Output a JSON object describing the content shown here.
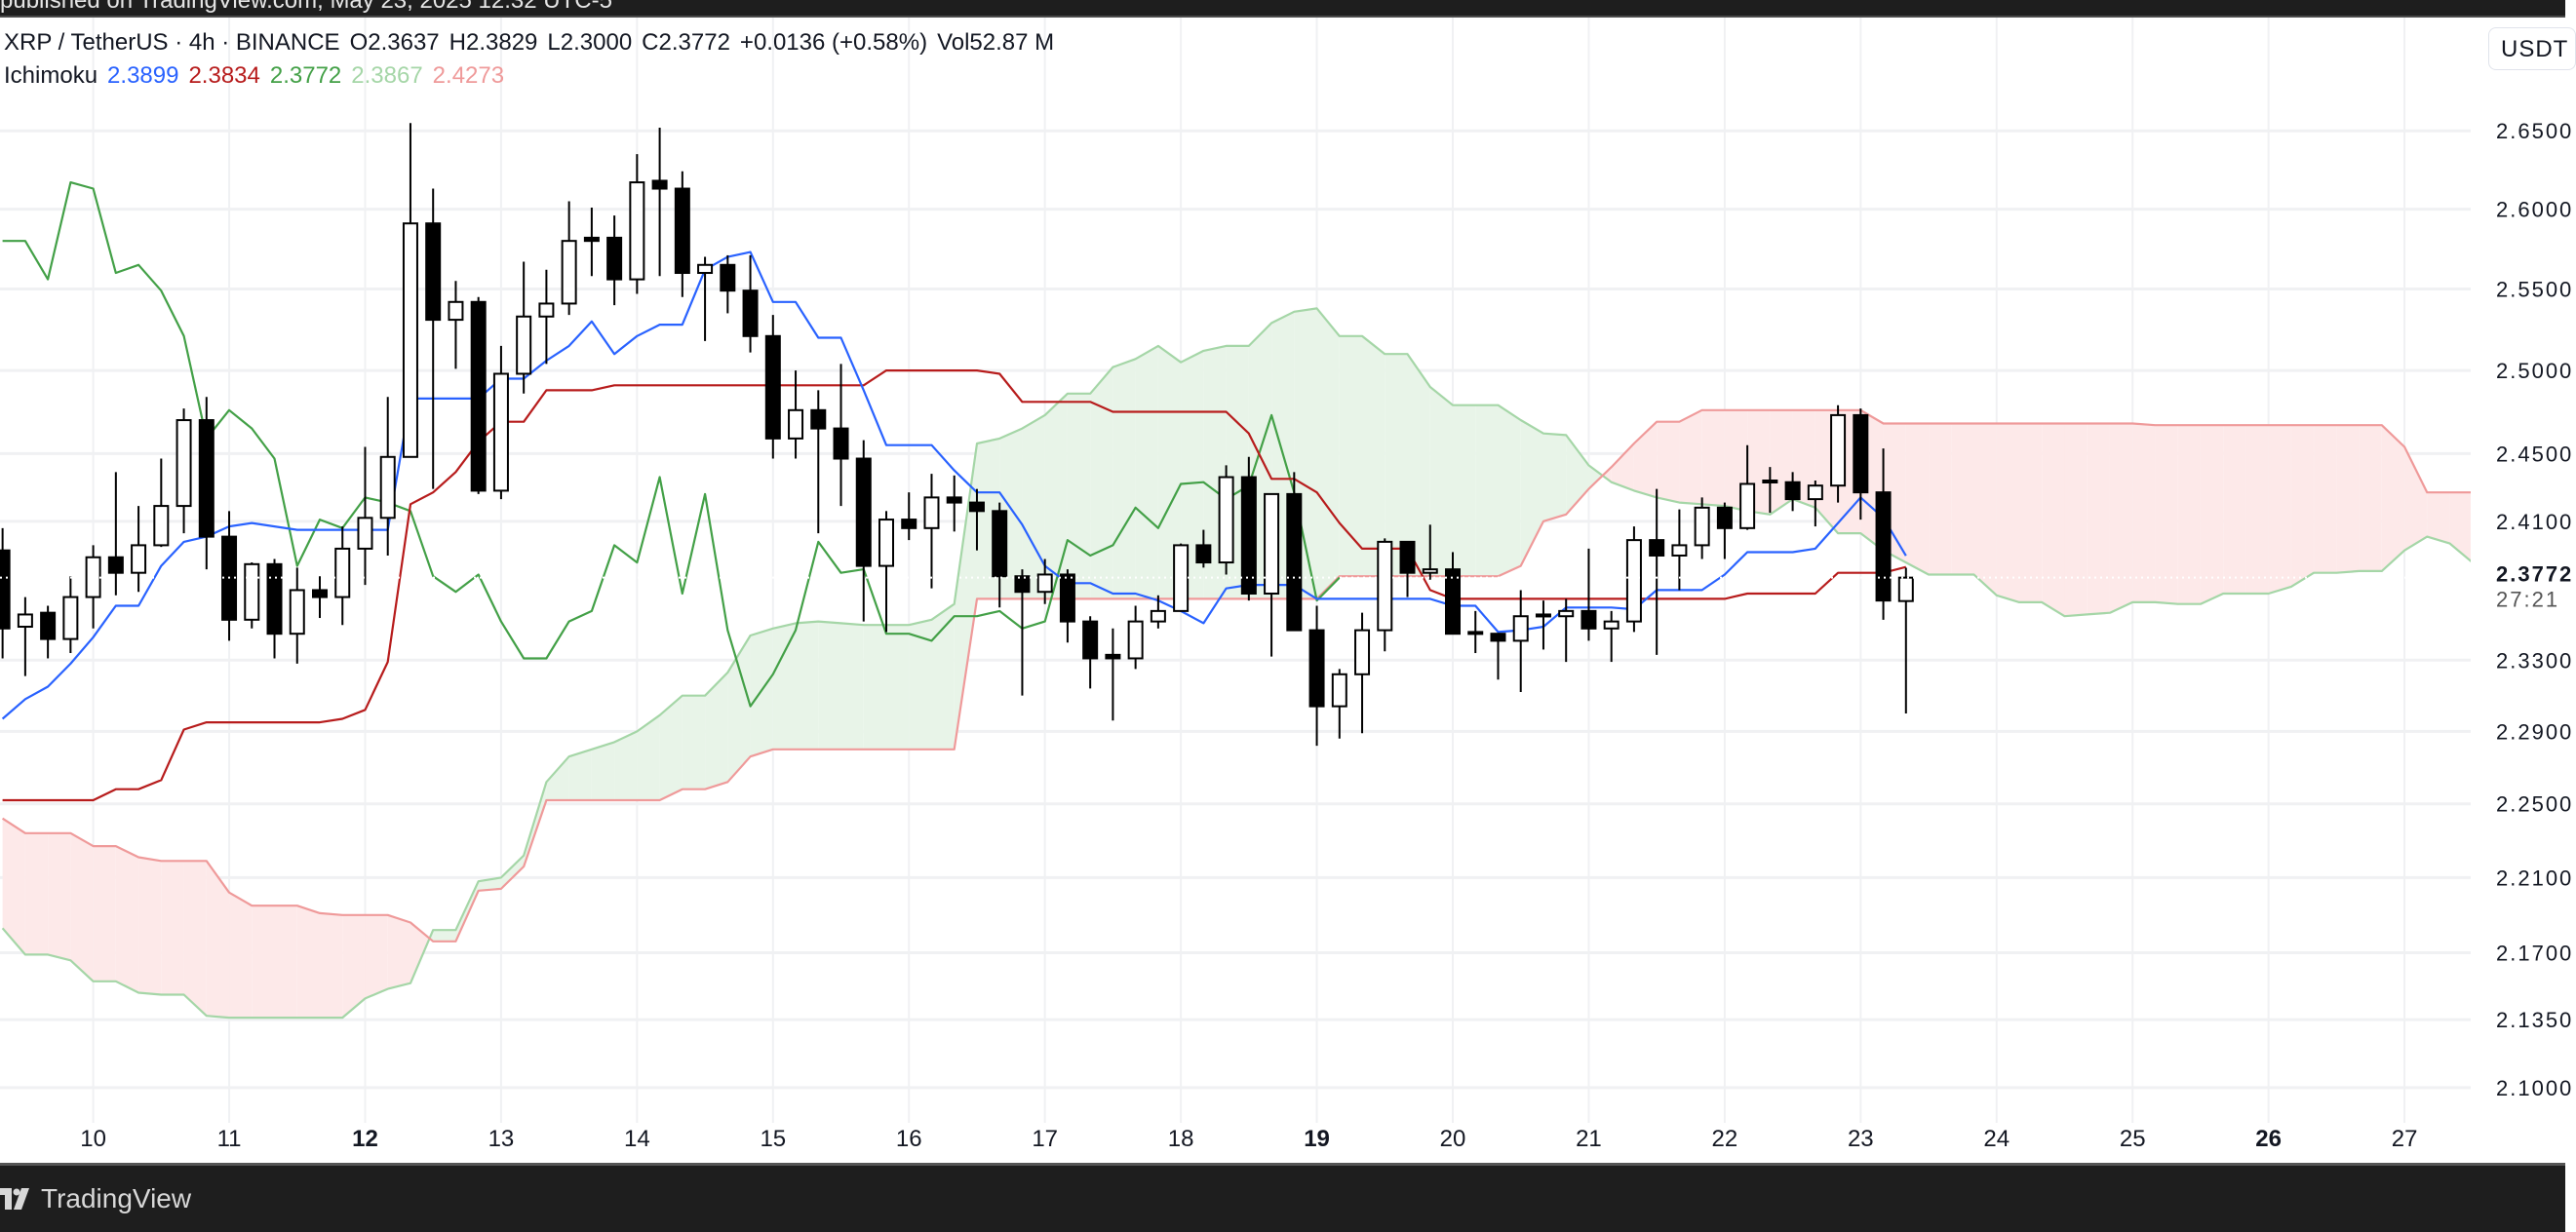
{
  "banner": {
    "text": "published on TradingView.com, May 23, 2025 12:32 UTC-5"
  },
  "legend": {
    "symbol": "XRP / TetherUS · 4h · BINANCE",
    "open": "O2.3637",
    "high": "H2.3829",
    "low": "L2.3000",
    "close": "C2.3772",
    "change": "+0.0136 (+0.58%)",
    "volume": "Vol52.87 M",
    "indicator": "Ichimoku",
    "values": [
      "2.3899",
      "2.3834",
      "2.3772",
      "2.3867",
      "2.4273"
    ]
  },
  "currency_button": "USDT",
  "footer": {
    "brand": "TradingView"
  },
  "colors": {
    "conversion": "#2962ff",
    "base": "#b71c1c",
    "lagging": "#43a047",
    "span_a": "#a5d6a7",
    "span_b": "#ef9a9a",
    "cloud_bull": "#e8f4e8",
    "cloud_bear": "#fde9e9",
    "candle_bear": "#000000",
    "candle_bull": "#ffffff"
  },
  "chart_data": {
    "type": "candlestick",
    "symbol": "XRP / TetherUS",
    "exchange": "BINANCE",
    "interval": "4h",
    "first_candle": "05-09 08:00",
    "y_scale": "log",
    "y_unit": "USDT",
    "grid": true,
    "current_price": {
      "label": "2.3772",
      "countdown": "27:21",
      "value": 2.3772
    },
    "y_ticks": [
      {
        "value": 2.65,
        "label": "2.6500"
      },
      {
        "value": 2.6,
        "label": "2.6000"
      },
      {
        "value": 2.55,
        "label": "2.5500"
      },
      {
        "value": 2.5,
        "label": "2.5000"
      },
      {
        "value": 2.45,
        "label": "2.4500"
      },
      {
        "value": 2.41,
        "label": "2.4100"
      },
      {
        "value": 2.33,
        "label": "2.3300"
      },
      {
        "value": 2.29,
        "label": "2.2900"
      },
      {
        "value": 2.25,
        "label": "2.2500"
      },
      {
        "value": 2.21,
        "label": "2.2100"
      },
      {
        "value": 2.17,
        "label": "2.1700"
      },
      {
        "value": 2.135,
        "label": "2.1350"
      },
      {
        "value": 2.1,
        "label": "2.1000"
      }
    ],
    "x_ticks": [
      {
        "day": 10,
        "label": "10",
        "bold": false
      },
      {
        "day": 11,
        "label": "11",
        "bold": false
      },
      {
        "day": 12,
        "label": "12",
        "bold": true
      },
      {
        "day": 13,
        "label": "13",
        "bold": false
      },
      {
        "day": 14,
        "label": "14",
        "bold": false
      },
      {
        "day": 15,
        "label": "15",
        "bold": false
      },
      {
        "day": 16,
        "label": "16",
        "bold": false
      },
      {
        "day": 17,
        "label": "17",
        "bold": false
      },
      {
        "day": 18,
        "label": "18",
        "bold": false
      },
      {
        "day": 19,
        "label": "19",
        "bold": true
      },
      {
        "day": 20,
        "label": "20",
        "bold": false
      },
      {
        "day": 21,
        "label": "21",
        "bold": false
      },
      {
        "day": 22,
        "label": "22",
        "bold": false
      },
      {
        "day": 23,
        "label": "23",
        "bold": false
      },
      {
        "day": 24,
        "label": "24",
        "bold": false
      },
      {
        "day": 25,
        "label": "25",
        "bold": false
      },
      {
        "day": 26,
        "label": "26",
        "bold": true
      },
      {
        "day": 27,
        "label": "27",
        "bold": false
      }
    ],
    "candles_ohlc": [
      [
        2.393,
        2.406,
        2.331,
        2.348
      ],
      [
        2.349,
        2.366,
        2.321,
        2.356
      ],
      [
        2.357,
        2.361,
        2.331,
        2.342
      ],
      [
        2.342,
        2.378,
        2.334,
        2.366
      ],
      [
        2.366,
        2.396,
        2.348,
        2.389
      ],
      [
        2.389,
        2.439,
        2.367,
        2.38
      ],
      [
        2.38,
        2.419,
        2.369,
        2.396
      ],
      [
        2.396,
        2.447,
        2.395,
        2.419
      ],
      [
        2.419,
        2.477,
        2.403,
        2.47
      ],
      [
        2.47,
        2.484,
        2.382,
        2.401
      ],
      [
        2.401,
        2.416,
        2.341,
        2.353
      ],
      [
        2.353,
        2.386,
        2.348,
        2.385
      ],
      [
        2.385,
        2.388,
        2.331,
        2.345
      ],
      [
        2.345,
        2.383,
        2.328,
        2.37
      ],
      [
        2.37,
        2.378,
        2.354,
        2.366
      ],
      [
        2.366,
        2.407,
        2.35,
        2.394
      ],
      [
        2.394,
        2.454,
        2.373,
        2.412
      ],
      [
        2.412,
        2.484,
        2.39,
        2.448
      ],
      [
        2.448,
        2.655,
        2.448,
        2.591
      ],
      [
        2.591,
        2.613,
        2.429,
        2.531
      ],
      [
        2.531,
        2.555,
        2.501,
        2.542
      ],
      [
        2.542,
        2.545,
        2.426,
        2.428
      ],
      [
        2.428,
        2.515,
        2.423,
        2.498
      ],
      [
        2.498,
        2.567,
        2.486,
        2.533
      ],
      [
        2.533,
        2.562,
        2.504,
        2.541
      ],
      [
        2.541,
        2.605,
        2.534,
        2.58
      ],
      [
        2.582,
        2.601,
        2.558,
        2.58
      ],
      [
        2.582,
        2.596,
        2.54,
        2.556
      ],
      [
        2.556,
        2.635,
        2.547,
        2.617
      ],
      [
        2.618,
        2.652,
        2.558,
        2.613
      ],
      [
        2.613,
        2.624,
        2.545,
        2.56
      ],
      [
        2.56,
        2.57,
        2.518,
        2.565
      ],
      [
        2.565,
        2.571,
        2.535,
        2.549
      ],
      [
        2.549,
        2.571,
        2.511,
        2.521
      ],
      [
        2.521,
        2.534,
        2.447,
        2.459
      ],
      [
        2.459,
        2.5,
        2.447,
        2.476
      ],
      [
        2.476,
        2.488,
        2.403,
        2.465
      ],
      [
        2.465,
        2.504,
        2.419,
        2.447
      ],
      [
        2.447,
        2.458,
        2.352,
        2.384
      ],
      [
        2.384,
        2.416,
        2.346,
        2.411
      ],
      [
        2.411,
        2.427,
        2.399,
        2.406
      ],
      [
        2.406,
        2.438,
        2.371,
        2.424
      ],
      [
        2.424,
        2.437,
        2.404,
        2.421
      ],
      [
        2.421,
        2.429,
        2.393,
        2.416
      ],
      [
        2.416,
        2.421,
        2.36,
        2.378
      ],
      [
        2.378,
        2.382,
        2.31,
        2.369
      ],
      [
        2.369,
        2.388,
        2.362,
        2.379
      ],
      [
        2.379,
        2.382,
        2.34,
        2.352
      ],
      [
        2.352,
        2.355,
        2.314,
        2.331
      ],
      [
        2.333,
        2.348,
        2.296,
        2.331
      ],
      [
        2.331,
        2.361,
        2.325,
        2.352
      ],
      [
        2.352,
        2.367,
        2.348,
        2.358
      ],
      [
        2.358,
        2.397,
        2.358,
        2.396
      ],
      [
        2.396,
        2.405,
        2.383,
        2.386
      ],
      [
        2.386,
        2.443,
        2.379,
        2.436
      ],
      [
        2.436,
        2.448,
        2.364,
        2.368
      ],
      [
        2.368,
        2.426,
        2.332,
        2.426
      ],
      [
        2.426,
        2.439,
        2.347,
        2.347
      ],
      [
        2.347,
        2.361,
        2.282,
        2.304
      ],
      [
        2.304,
        2.325,
        2.286,
        2.322
      ],
      [
        2.322,
        2.357,
        2.289,
        2.347
      ],
      [
        2.347,
        2.4,
        2.335,
        2.398
      ],
      [
        2.398,
        2.398,
        2.366,
        2.38
      ],
      [
        2.38,
        2.408,
        2.376,
        2.382
      ],
      [
        2.382,
        2.392,
        2.345,
        2.345
      ],
      [
        2.346,
        2.358,
        2.334,
        2.345
      ],
      [
        2.345,
        2.345,
        2.319,
        2.341
      ],
      [
        2.341,
        2.37,
        2.312,
        2.355
      ],
      [
        2.356,
        2.364,
        2.336,
        2.355
      ],
      [
        2.355,
        2.365,
        2.329,
        2.358
      ],
      [
        2.358,
        2.394,
        2.341,
        2.348
      ],
      [
        2.348,
        2.358,
        2.329,
        2.352
      ],
      [
        2.352,
        2.407,
        2.346,
        2.399
      ],
      [
        2.399,
        2.429,
        2.333,
        2.39
      ],
      [
        2.39,
        2.417,
        2.37,
        2.396
      ],
      [
        2.396,
        2.424,
        2.388,
        2.418
      ],
      [
        2.418,
        2.421,
        2.388,
        2.406
      ],
      [
        2.406,
        2.455,
        2.405,
        2.432
      ],
      [
        2.434,
        2.442,
        2.415,
        2.433
      ],
      [
        2.433,
        2.439,
        2.416,
        2.423
      ],
      [
        2.423,
        2.434,
        2.407,
        2.431
      ],
      [
        2.431,
        2.479,
        2.421,
        2.473
      ],
      [
        2.473,
        2.477,
        2.411,
        2.427
      ],
      [
        2.427,
        2.453,
        2.353,
        2.364
      ],
      [
        2.3637,
        2.3829,
        2.3,
        2.3772
      ]
    ],
    "ichimoku": {
      "conversion_line": [
        2.297,
        2.308,
        2.315,
        2.328,
        2.343,
        2.361,
        2.361,
        2.384,
        2.398,
        2.401,
        2.407,
        2.409,
        2.407,
        2.405,
        2.405,
        2.405,
        2.405,
        2.405,
        2.483,
        2.483,
        2.483,
        2.483,
        2.495,
        2.495,
        2.506,
        2.515,
        2.53,
        2.51,
        2.521,
        2.528,
        2.528,
        2.562,
        2.57,
        2.573,
        2.542,
        2.542,
        2.52,
        2.52,
        2.488,
        2.455,
        2.455,
        2.455,
        2.44,
        2.427,
        2.427,
        2.408,
        2.384,
        2.374,
        2.374,
        2.368,
        2.368,
        2.364,
        2.358,
        2.351,
        2.371,
        2.373,
        2.373,
        2.373,
        2.365,
        2.365,
        2.365,
        2.365,
        2.365,
        2.365,
        2.361,
        2.361,
        2.346,
        2.347,
        2.349,
        2.36,
        2.36,
        2.36,
        2.359,
        2.37,
        2.37,
        2.37,
        2.379,
        2.392,
        2.392,
        2.392,
        2.394,
        2.409,
        2.424,
        2.412,
        2.3899
      ],
      "base_line": [
        2.252,
        2.252,
        2.252,
        2.252,
        2.252,
        2.258,
        2.258,
        2.263,
        2.291,
        2.295,
        2.295,
        2.295,
        2.295,
        2.295,
        2.295,
        2.297,
        2.302,
        2.329,
        2.42,
        2.427,
        2.439,
        2.457,
        2.469,
        2.469,
        2.488,
        2.488,
        2.488,
        2.491,
        2.491,
        2.491,
        2.491,
        2.491,
        2.491,
        2.491,
        2.491,
        2.491,
        2.491,
        2.491,
        2.491,
        2.5,
        2.5,
        2.5,
        2.5,
        2.5,
        2.498,
        2.481,
        2.481,
        2.481,
        2.481,
        2.475,
        2.475,
        2.475,
        2.475,
        2.475,
        2.475,
        2.462,
        2.435,
        2.435,
        2.427,
        2.409,
        2.394,
        2.394,
        2.394,
        2.37,
        2.365,
        2.365,
        2.365,
        2.365,
        2.365,
        2.365,
        2.365,
        2.365,
        2.365,
        2.365,
        2.365,
        2.365,
        2.365,
        2.368,
        2.368,
        2.368,
        2.368,
        2.38,
        2.38,
        2.38,
        2.3834
      ],
      "lagging_span": [
        2.58,
        2.58,
        2.556,
        2.617,
        2.613,
        2.56,
        2.565,
        2.549,
        2.521,
        2.459,
        2.476,
        2.465,
        2.447,
        2.384,
        2.411,
        2.406,
        2.424,
        2.421,
        2.416,
        2.378,
        2.369,
        2.379,
        2.352,
        2.331,
        2.331,
        2.352,
        2.358,
        2.396,
        2.386,
        2.436,
        2.368,
        2.426,
        2.347,
        2.304,
        2.322,
        2.347,
        2.398,
        2.38,
        2.382,
        2.345,
        2.345,
        2.341,
        2.355,
        2.355,
        2.358,
        2.348,
        2.352,
        2.399,
        2.39,
        2.396,
        2.418,
        2.406,
        2.432,
        2.433,
        2.423,
        2.431,
        2.473,
        2.427,
        2.364,
        2.3772
      ],
      "leading_span_a": [
        2.183,
        2.169,
        2.169,
        2.166,
        2.155,
        2.155,
        2.149,
        2.148,
        2.148,
        2.137,
        2.136,
        2.136,
        2.136,
        2.136,
        2.136,
        2.136,
        2.146,
        2.151,
        2.154,
        2.182,
        2.182,
        2.208,
        2.21,
        2.222,
        2.262,
        2.276,
        2.28,
        2.284,
        2.29,
        2.299,
        2.31,
        2.31,
        2.323,
        2.344,
        2.348,
        2.351,
        2.352,
        2.351,
        2.35,
        2.35,
        2.35,
        2.353,
        2.362,
        2.456,
        2.459,
        2.465,
        2.473,
        2.486,
        2.486,
        2.502,
        2.507,
        2.515,
        2.505,
        2.512,
        2.515,
        2.515,
        2.529,
        2.536,
        2.538,
        2.521,
        2.521,
        2.51,
        2.51,
        2.49,
        2.479,
        2.479,
        2.479,
        2.47,
        2.462,
        2.461,
        2.443,
        2.433,
        2.428,
        2.424,
        2.421,
        2.42,
        2.419,
        2.416,
        2.414,
        2.423,
        2.418,
        2.403,
        2.403,
        2.393,
        2.386,
        2.379,
        2.379,
        2.379,
        2.367,
        2.363,
        2.363,
        2.355,
        2.356,
        2.357,
        2.363,
        2.363,
        2.362,
        2.362,
        2.368,
        2.368,
        2.368,
        2.372,
        2.38,
        2.38,
        2.381,
        2.381,
        2.393,
        2.401,
        2.397,
        2.386
      ],
      "leading_span_b": [
        2.242,
        2.234,
        2.234,
        2.234,
        2.227,
        2.227,
        2.221,
        2.219,
        2.219,
        2.219,
        2.202,
        2.195,
        2.195,
        2.195,
        2.191,
        2.19,
        2.19,
        2.19,
        2.186,
        2.176,
        2.176,
        2.203,
        2.204,
        2.216,
        2.252,
        2.252,
        2.252,
        2.252,
        2.252,
        2.252,
        2.258,
        2.258,
        2.262,
        2.276,
        2.28,
        2.28,
        2.28,
        2.28,
        2.28,
        2.28,
        2.28,
        2.28,
        2.28,
        2.365,
        2.365,
        2.365,
        2.365,
        2.365,
        2.365,
        2.365,
        2.365,
        2.365,
        2.365,
        2.365,
        2.365,
        2.365,
        2.365,
        2.365,
        2.365,
        2.378,
        2.378,
        2.378,
        2.378,
        2.378,
        2.378,
        2.378,
        2.378,
        2.384,
        2.41,
        2.414,
        2.429,
        2.442,
        2.456,
        2.469,
        2.469,
        2.476,
        2.476,
        2.476,
        2.476,
        2.476,
        2.476,
        2.476,
        2.476,
        2.468,
        2.468,
        2.468,
        2.468,
        2.468,
        2.468,
        2.468,
        2.468,
        2.468,
        2.468,
        2.468,
        2.468,
        2.467,
        2.467,
        2.467,
        2.467,
        2.467,
        2.467,
        2.467,
        2.467,
        2.467,
        2.467,
        2.467,
        2.454,
        2.427,
        2.427,
        2.427
      ]
    }
  }
}
